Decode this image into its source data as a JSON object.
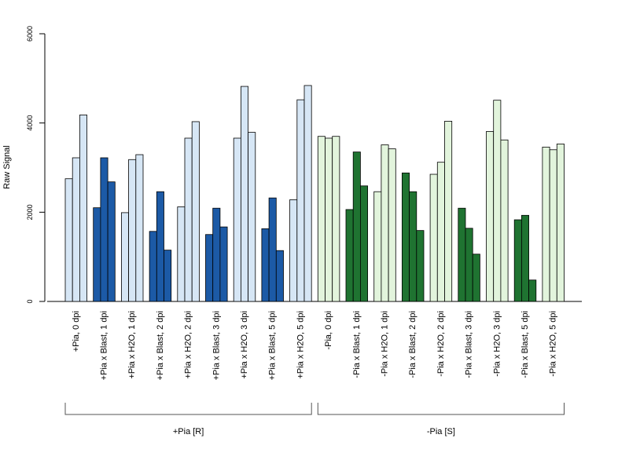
{
  "chart_data": {
    "type": "bar",
    "ylabel": "Raw Signal",
    "ylim": [
      0,
      6000
    ],
    "yticks": [
      0,
      2000,
      4000,
      6000
    ],
    "grid": false,
    "categories": [
      "+Pia, 0 dpi",
      "+Pia x Blast, 1 dpi",
      "+Pia x H2O, 1 dpi",
      "+Pia x Blast, 2 dpi",
      "+Pia x H2O, 2 dpi",
      "+Pia x Blast, 3 dpi",
      "+Pia x H2O, 3 dpi",
      "+Pia x Blast, 5 dpi",
      "+Pia x H2O, 5 dpi",
      "-Pia, 0 dpi",
      "-Pia x Blast, 1 dpi",
      "-Pia x H2O, 1 dpi",
      "-Pia x Blast, 2 dpi",
      "-Pia x H2O, 2 dpi",
      "-Pia x Blast, 3 dpi",
      "-Pia x H2O, 3 dpi",
      "-Pia x Blast, 5 dpi",
      "-Pia x H2O, 5 dpi"
    ],
    "replicates": [
      [
        2750,
        3220,
        4180
      ],
      [
        2100,
        3220,
        2680
      ],
      [
        1990,
        3180,
        3290
      ],
      [
        1570,
        2460,
        1150
      ],
      [
        2120,
        3660,
        4030
      ],
      [
        1500,
        2090,
        1670
      ],
      [
        3660,
        4820,
        3790
      ],
      [
        1630,
        2320,
        1140
      ],
      [
        2280,
        4520,
        4840
      ],
      [
        3700,
        3660,
        3700
      ],
      [
        2060,
        3350,
        2590
      ],
      [
        2460,
        3510,
        3420
      ],
      [
        2880,
        2460,
        1590
      ],
      [
        2850,
        3120,
        4040
      ],
      [
        2090,
        1640,
        1060
      ],
      [
        3810,
        4510,
        3620
      ],
      [
        1830,
        1930,
        480
      ],
      [
        3460,
        3400,
        3530
      ]
    ],
    "groups": [
      {
        "label": "+Pia [R]",
        "categories": [
          0,
          8
        ]
      },
      {
        "label": "-Pia [S]",
        "categories": [
          9,
          17
        ]
      }
    ],
    "colors": {
      "pia_plus_h2o": "#d6e6f5",
      "pia_plus_blast": "#1c5aa6",
      "pia_minus_h2o": "#e2f4dc",
      "pia_minus_blast": "#1f7331",
      "axis": "#000000"
    }
  }
}
